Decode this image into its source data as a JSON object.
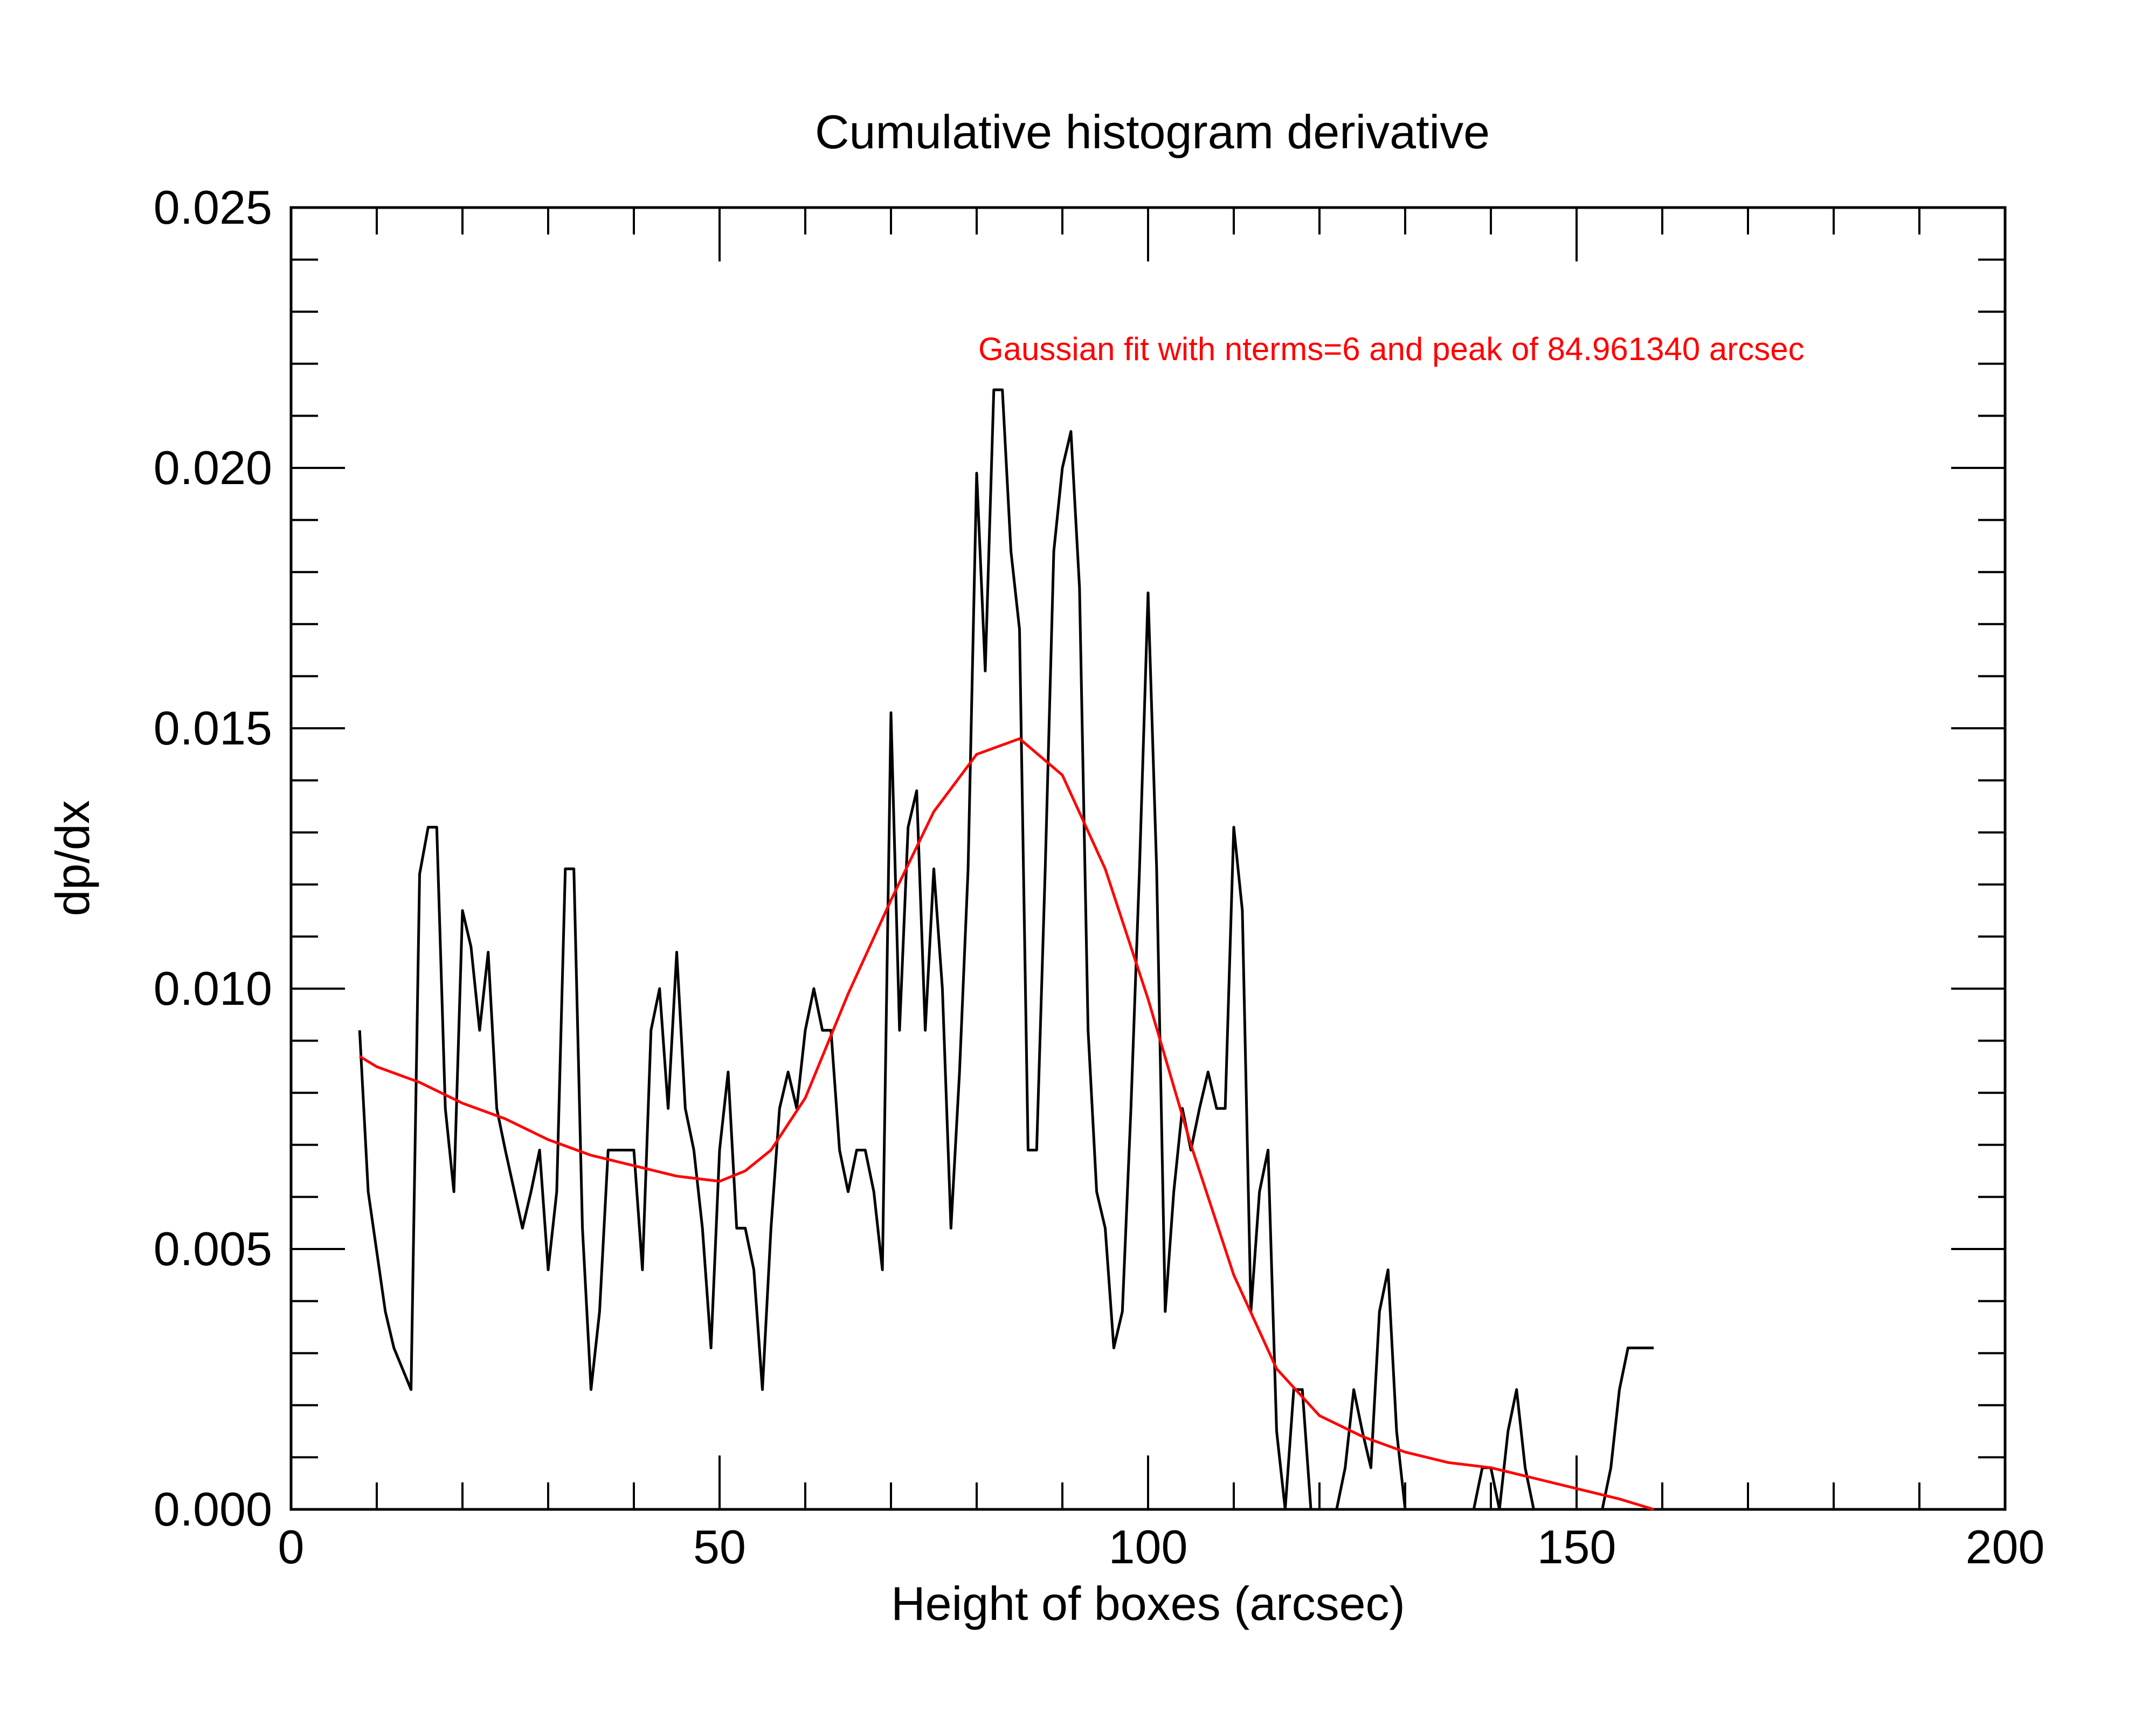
{
  "chart_data": {
    "type": "line",
    "title": "Cumulative histogram derivative",
    "xlabel": "Height of boxes (arcsec)",
    "ylabel": "dp/dx",
    "xlim": [
      0,
      200
    ],
    "ylim": [
      0,
      0.025
    ],
    "xticks": [
      0,
      50,
      100,
      150,
      200
    ],
    "xtick_labels": [
      "0",
      "50",
      "100",
      "150",
      "200"
    ],
    "yticks": [
      0,
      0.005,
      0.01,
      0.015,
      0.02,
      0.025
    ],
    "ytick_labels": [
      "0.000",
      "0.005",
      "0.010",
      "0.015",
      "0.020",
      "0.025"
    ],
    "annotation": {
      "text": "Gaussian fit with nterms=6 and peak of  84.961340 arcsec",
      "color": "#ff0000"
    },
    "grid": false,
    "series": [
      {
        "color": "#000000",
        "x": [
          8,
          9,
          11,
          12,
          14,
          15,
          16,
          17,
          18,
          19,
          20,
          21,
          22,
          23,
          24,
          25,
          27,
          28,
          29,
          30,
          31,
          32,
          33,
          34,
          35,
          36,
          37,
          38,
          39,
          40,
          41,
          42,
          43,
          44,
          45,
          46,
          47,
          48,
          49,
          50,
          51,
          52,
          53,
          54,
          55,
          56,
          57,
          58,
          59,
          60,
          61,
          62,
          63,
          64,
          65,
          66,
          67,
          68,
          69,
          70,
          71,
          72,
          73,
          74,
          75,
          76,
          77,
          78,
          79,
          80,
          81,
          82,
          83,
          84,
          85,
          86,
          87,
          88,
          89,
          90,
          91,
          92,
          93,
          94,
          95,
          96,
          97,
          98,
          99,
          100,
          101,
          102,
          103,
          104,
          105,
          106,
          107,
          108,
          109,
          110,
          111,
          112,
          113,
          114,
          115,
          116,
          117,
          118,
          119,
          120,
          121,
          122,
          123,
          124,
          125,
          126,
          127,
          128,
          129,
          130,
          138,
          139,
          140,
          141,
          142,
          143,
          144,
          145,
          153,
          154,
          155,
          156,
          157,
          158,
          159
        ],
        "y": [
          0.0092,
          0.0061,
          0.0038,
          0.0031,
          0.0023,
          0.0122,
          0.0131,
          0.0131,
          0.0077,
          0.0061,
          0.0115,
          0.0108,
          0.0092,
          0.0107,
          0.0077,
          0.0069,
          0.0054,
          0.0061,
          0.0069,
          0.0046,
          0.0061,
          0.0123,
          0.0123,
          0.0054,
          0.0023,
          0.0038,
          0.0069,
          0.0069,
          0.0069,
          0.0069,
          0.0046,
          0.0092,
          0.01,
          0.0077,
          0.0107,
          0.0077,
          0.0069,
          0.0054,
          0.0031,
          0.0069,
          0.0084,
          0.0054,
          0.0054,
          0.0046,
          0.0023,
          0.0054,
          0.0077,
          0.0084,
          0.0077,
          0.0092,
          0.01,
          0.0092,
          0.0092,
          0.0069,
          0.0061,
          0.0069,
          0.0069,
          0.0061,
          0.0046,
          0.0153,
          0.0092,
          0.0131,
          0.0138,
          0.0092,
          0.0123,
          0.01,
          0.0054,
          0.0084,
          0.0123,
          0.0199,
          0.0161,
          0.0215,
          0.0215,
          0.0184,
          0.0169,
          0.0069,
          0.0069,
          0.0123,
          0.0184,
          0.02,
          0.0207,
          0.0177,
          0.0092,
          0.0061,
          0.0054,
          0.0031,
          0.0038,
          0.0077,
          0.0123,
          0.0176,
          0.0123,
          0.0038,
          0.0061,
          0.0077,
          0.0069,
          0.0077,
          0.0084,
          0.0077,
          0.0077,
          0.0131,
          0.0115,
          0.0038,
          0.0061,
          0.0069,
          0.0015,
          0.0,
          0.0023,
          0.0023,
          0.0,
          0.0,
          0.0,
          0.0,
          0.0008,
          0.0023,
          0.0015,
          0.0008,
          0.0038,
          0.0046,
          0.0015,
          0.0,
          0.0,
          0.0008,
          0.0008,
          0.0,
          0.0015,
          0.0023,
          0.0008,
          0.0,
          0.0,
          0.0008,
          0.0023,
          0.0031,
          0.0031,
          0.0031,
          0.0031
        ]
      },
      {
        "color": "#ff0000",
        "x": [
          8,
          10,
          15,
          20,
          25,
          30,
          35,
          40,
          45,
          50,
          53,
          56,
          60,
          65,
          70,
          75,
          80,
          85,
          90,
          95,
          100,
          105,
          110,
          115,
          120,
          125,
          130,
          135,
          140,
          145,
          150,
          155,
          159
        ],
        "y": [
          0.0087,
          0.0085,
          0.0082,
          0.0078,
          0.0075,
          0.0071,
          0.0068,
          0.0066,
          0.0064,
          0.0063,
          0.0065,
          0.0069,
          0.0079,
          0.0099,
          0.0117,
          0.0134,
          0.0145,
          0.0148,
          0.0141,
          0.0123,
          0.0098,
          0.007,
          0.0045,
          0.0027,
          0.0018,
          0.0014,
          0.0011,
          0.0009,
          0.0008,
          0.0006,
          0.0004,
          0.0002,
          0.0
        ]
      }
    ]
  }
}
